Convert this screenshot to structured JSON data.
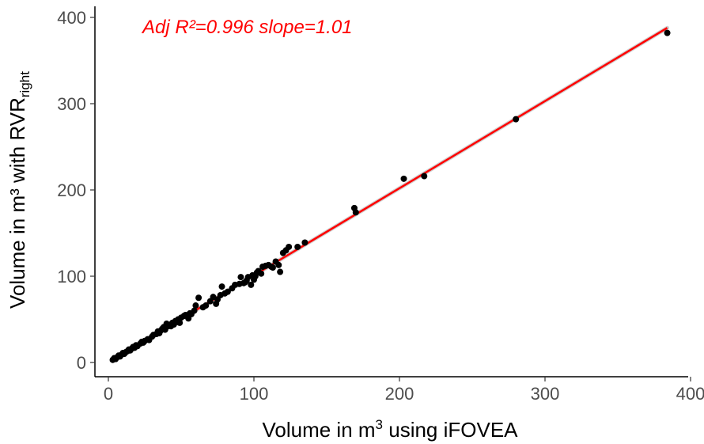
{
  "chart_data": {
    "type": "scatter",
    "title": "",
    "annotation": "Adj R²=0.996  slope=1.01",
    "annotation_color": "#ff0000",
    "xlabel_pre": "Volume in m",
    "xlabel_sup": "3",
    "xlabel_post": " using iFOVEA",
    "ylabel_pre": "Volume in m³ with RVR",
    "ylabel_sub": "right",
    "xlim": [
      -10,
      400
    ],
    "ylim": [
      -12,
      408
    ],
    "xticks": [
      0,
      100,
      200,
      300,
      400
    ],
    "yticks": [
      0,
      100,
      200,
      300,
      400
    ],
    "xtick_labels": [
      "0",
      "100",
      "200",
      "300",
      "400"
    ],
    "ytick_labels": [
      "0",
      "100",
      "200",
      "300",
      "400"
    ],
    "grid": false,
    "point_color": "#000000",
    "line_color": "#ff0000",
    "fit_line": {
      "intercept": 0,
      "slope": 1.01,
      "x_range": [
        3,
        384
      ]
    },
    "points": [
      {
        "x": 3,
        "y": 3
      },
      {
        "x": 4,
        "y": 5
      },
      {
        "x": 5,
        "y": 4
      },
      {
        "x": 6,
        "y": 6
      },
      {
        "x": 7,
        "y": 8
      },
      {
        "x": 8,
        "y": 7
      },
      {
        "x": 9,
        "y": 9
      },
      {
        "x": 10,
        "y": 11
      },
      {
        "x": 11,
        "y": 10
      },
      {
        "x": 12,
        "y": 12
      },
      {
        "x": 13,
        "y": 13
      },
      {
        "x": 14,
        "y": 15
      },
      {
        "x": 15,
        "y": 14
      },
      {
        "x": 16,
        "y": 16
      },
      {
        "x": 17,
        "y": 18
      },
      {
        "x": 18,
        "y": 17
      },
      {
        "x": 19,
        "y": 20
      },
      {
        "x": 20,
        "y": 19
      },
      {
        "x": 22,
        "y": 22
      },
      {
        "x": 23,
        "y": 24
      },
      {
        "x": 24,
        "y": 23
      },
      {
        "x": 25,
        "y": 25
      },
      {
        "x": 27,
        "y": 27
      },
      {
        "x": 28,
        "y": 26
      },
      {
        "x": 30,
        "y": 30
      },
      {
        "x": 31,
        "y": 32
      },
      {
        "x": 33,
        "y": 33
      },
      {
        "x": 34,
        "y": 36
      },
      {
        "x": 35,
        "y": 34
      },
      {
        "x": 36,
        "y": 37
      },
      {
        "x": 37,
        "y": 39
      },
      {
        "x": 38,
        "y": 41
      },
      {
        "x": 39,
        "y": 38
      },
      {
        "x": 40,
        "y": 45
      },
      {
        "x": 41,
        "y": 42
      },
      {
        "x": 42,
        "y": 43
      },
      {
        "x": 43,
        "y": 42
      },
      {
        "x": 44,
        "y": 46
      },
      {
        "x": 45,
        "y": 44
      },
      {
        "x": 46,
        "y": 48
      },
      {
        "x": 47,
        "y": 47
      },
      {
        "x": 48,
        "y": 50
      },
      {
        "x": 49,
        "y": 46
      },
      {
        "x": 50,
        "y": 52
      },
      {
        "x": 52,
        "y": 54
      },
      {
        "x": 53,
        "y": 55
      },
      {
        "x": 55,
        "y": 51
      },
      {
        "x": 56,
        "y": 57
      },
      {
        "x": 57,
        "y": 56
      },
      {
        "x": 59,
        "y": 60
      },
      {
        "x": 60,
        "y": 66
      },
      {
        "x": 62,
        "y": 75
      },
      {
        "x": 65,
        "y": 64
      },
      {
        "x": 67,
        "y": 66
      },
      {
        "x": 70,
        "y": 71
      },
      {
        "x": 72,
        "y": 76
      },
      {
        "x": 74,
        "y": 68
      },
      {
        "x": 75,
        "y": 73
      },
      {
        "x": 77,
        "y": 78
      },
      {
        "x": 78,
        "y": 88
      },
      {
        "x": 80,
        "y": 80
      },
      {
        "x": 82,
        "y": 82
      },
      {
        "x": 85,
        "y": 86
      },
      {
        "x": 87,
        "y": 90
      },
      {
        "x": 90,
        "y": 91
      },
      {
        "x": 91,
        "y": 99
      },
      {
        "x": 93,
        "y": 92
      },
      {
        "x": 94,
        "y": 93
      },
      {
        "x": 95,
        "y": 95
      },
      {
        "x": 96,
        "y": 99
      },
      {
        "x": 98,
        "y": 90
      },
      {
        "x": 99,
        "y": 101
      },
      {
        "x": 100,
        "y": 96
      },
      {
        "x": 101,
        "y": 100
      },
      {
        "x": 102,
        "y": 104
      },
      {
        "x": 103,
        "y": 106
      },
      {
        "x": 105,
        "y": 103
      },
      {
        "x": 106,
        "y": 111
      },
      {
        "x": 108,
        "y": 112
      },
      {
        "x": 110,
        "y": 113
      },
      {
        "x": 112,
        "y": 111
      },
      {
        "x": 113,
        "y": 110
      },
      {
        "x": 115,
        "y": 117
      },
      {
        "x": 117,
        "y": 113
      },
      {
        "x": 118,
        "y": 105
      },
      {
        "x": 120,
        "y": 127
      },
      {
        "x": 122,
        "y": 130
      },
      {
        "x": 124,
        "y": 134
      },
      {
        "x": 130,
        "y": 134
      },
      {
        "x": 135,
        "y": 139
      },
      {
        "x": 169,
        "y": 179
      },
      {
        "x": 170,
        "y": 174
      },
      {
        "x": 203,
        "y": 213
      },
      {
        "x": 217,
        "y": 216
      },
      {
        "x": 280,
        "y": 282
      },
      {
        "x": 384,
        "y": 382
      }
    ]
  }
}
